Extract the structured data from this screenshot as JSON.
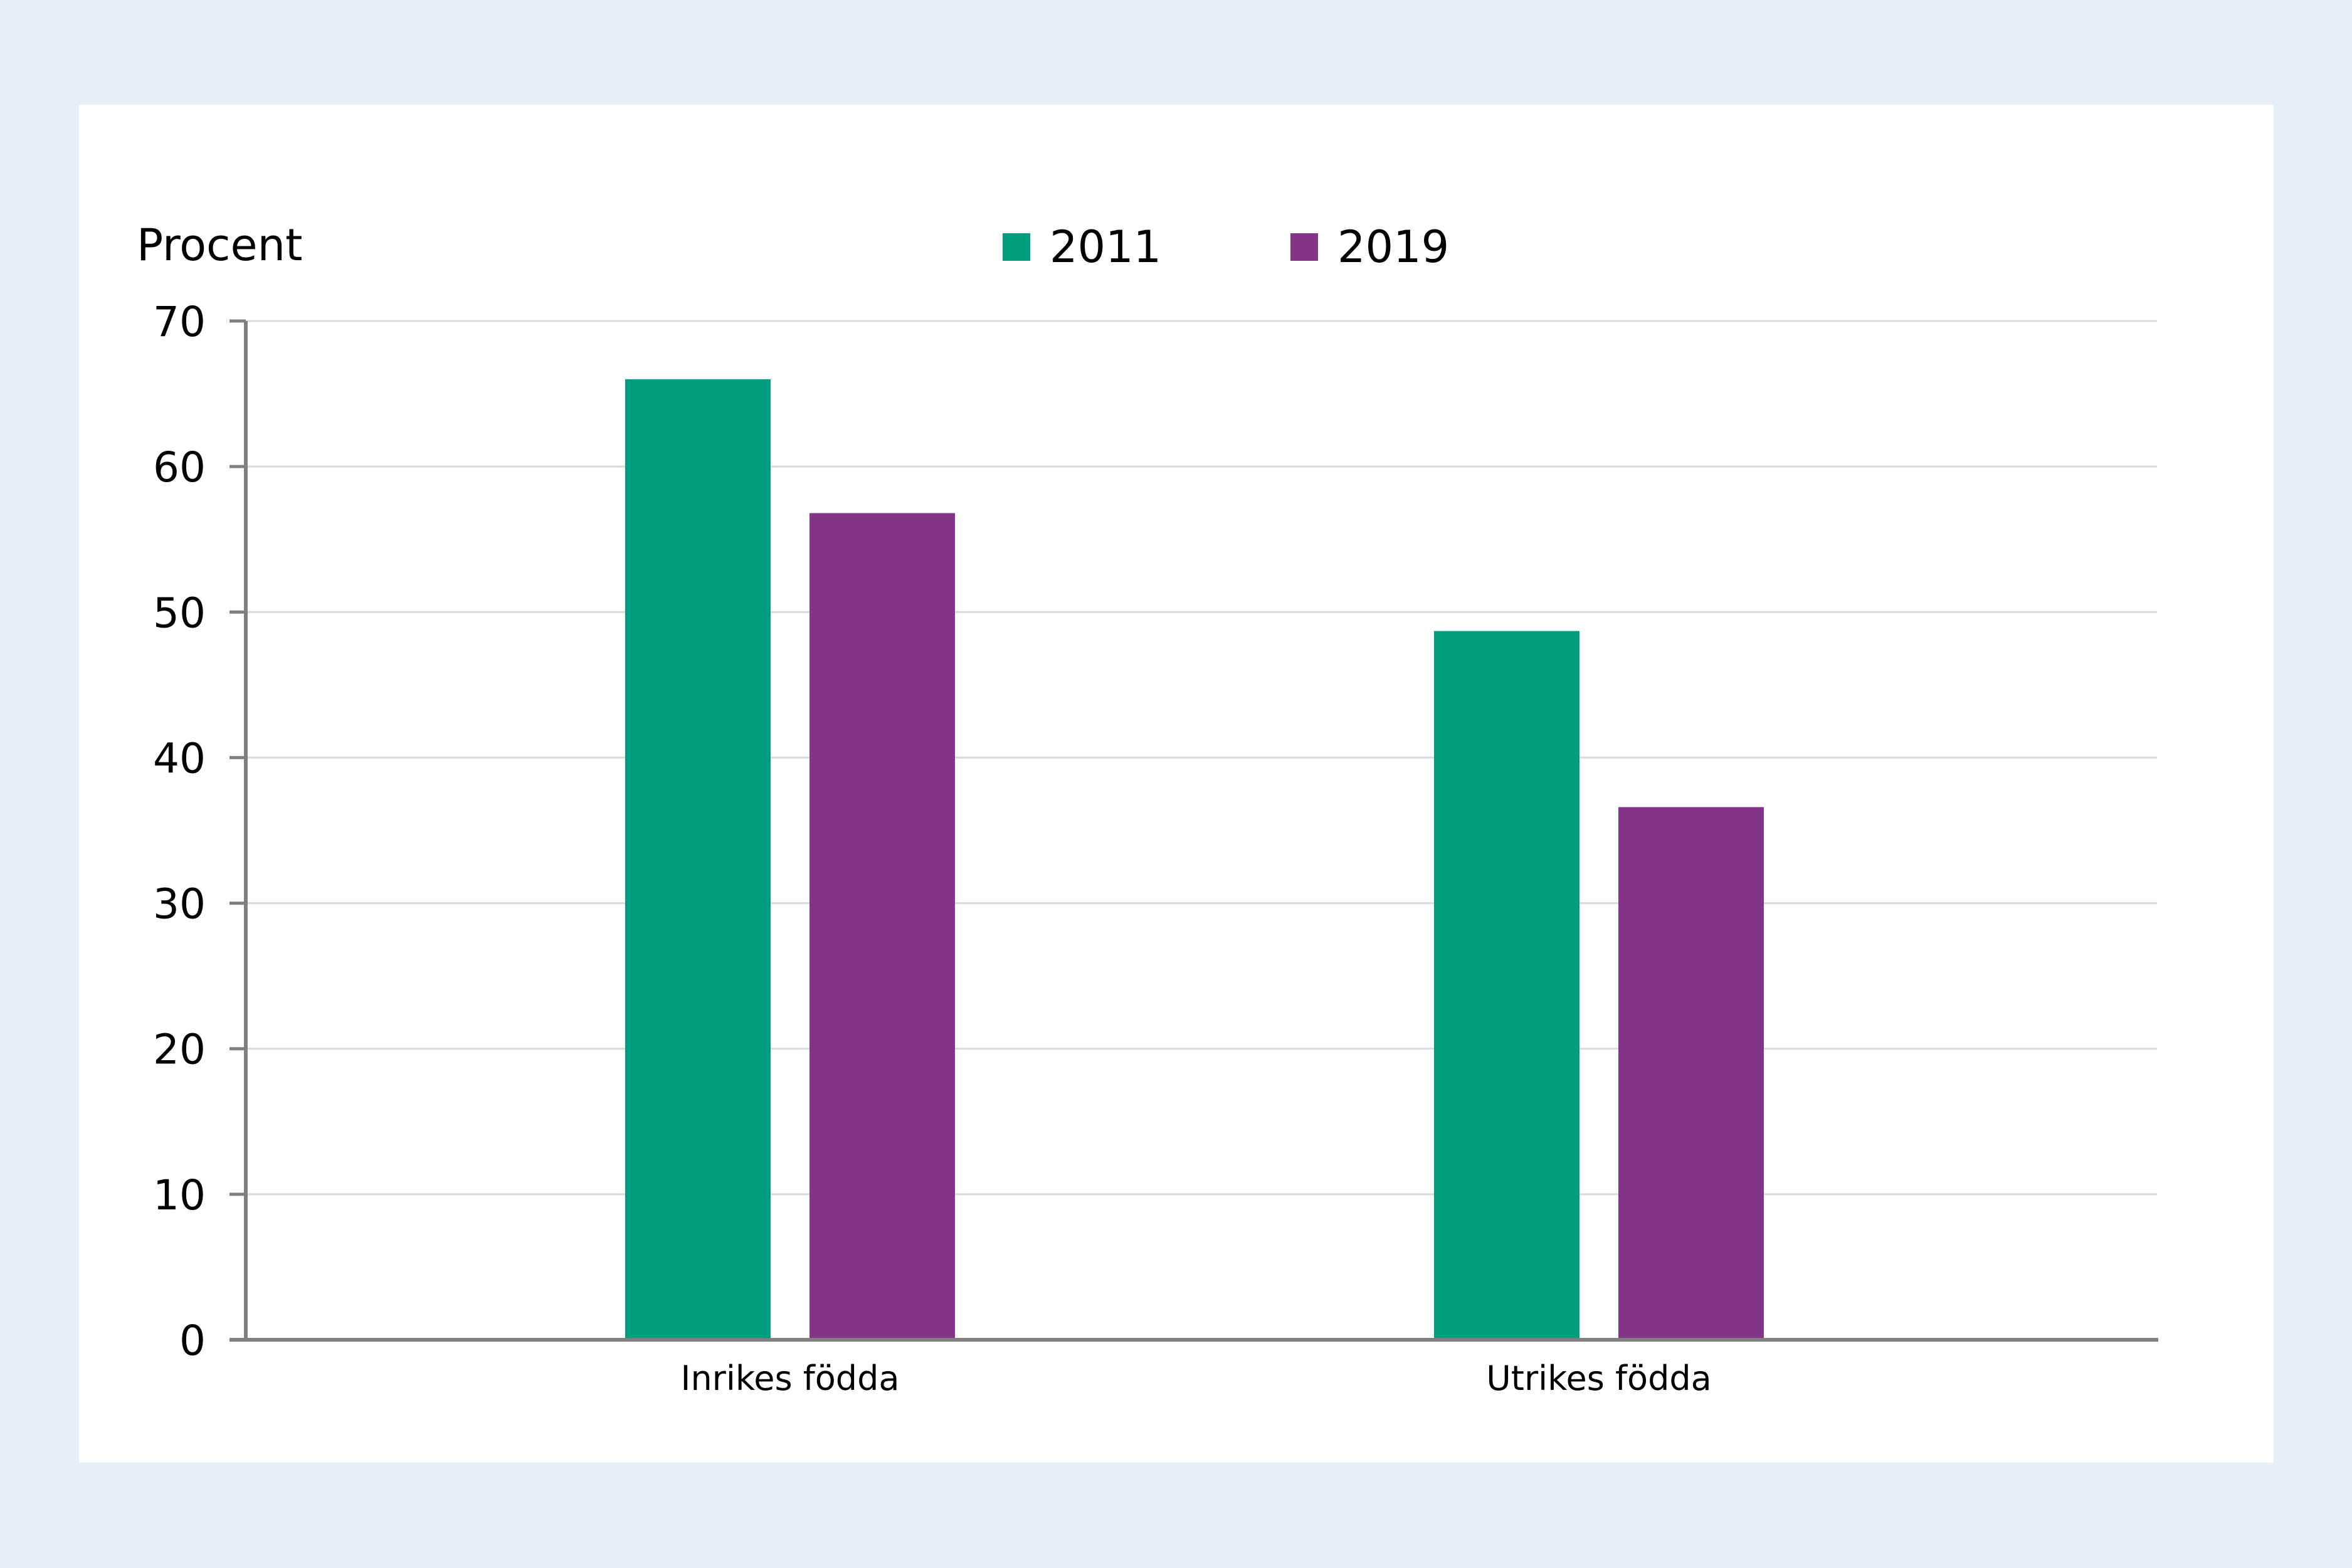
{
  "chart_data": {
    "type": "bar",
    "ylabel": "Procent",
    "xlabel": "",
    "categories": [
      "Inrikes födda",
      "Utrikes födda"
    ],
    "series": [
      {
        "name": "2011",
        "color": "#009e7e",
        "values": [
          66,
          48.7
        ]
      },
      {
        "name": "2019",
        "color": "#833588",
        "values": [
          56.8,
          36.6
        ]
      }
    ],
    "ylim": [
      0,
      70
    ],
    "yticks": [
      0,
      10,
      20,
      30,
      40,
      50,
      60,
      70
    ],
    "grid": true,
    "legend_position": "top-center"
  },
  "colors": {
    "background": "#e4eff6",
    "panel": "#ffffff",
    "axis": "#7f7f7f",
    "grid": "#d9d9d9"
  }
}
